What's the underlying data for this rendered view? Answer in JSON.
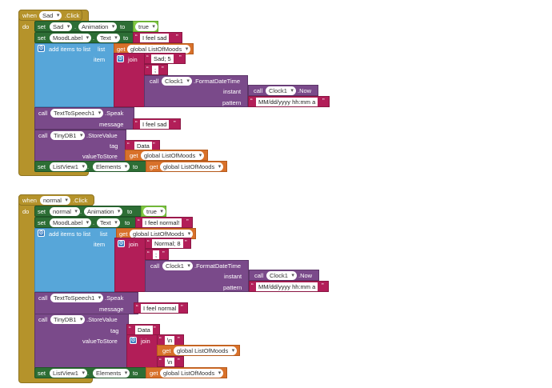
{
  "blocks": [
    {
      "event": {
        "when": "when",
        "component": "Sad",
        "event_name": ".Click",
        "do": "do"
      },
      "set_animation": {
        "set": "set",
        "component": "Sad",
        "property": "Animation",
        "to": "to",
        "value": "true"
      },
      "set_label": {
        "set": "set",
        "component": "MoodLabel",
        "property": "Text",
        "to": "to",
        "value": "I feel sad"
      },
      "add_items": {
        "label": "add items to list",
        "list": "list",
        "item": "item",
        "get": "get",
        "var": "global ListOfMoods"
      },
      "join": {
        "label": "join",
        "s1": "Sad; 5",
        "s2": ";"
      },
      "format": {
        "call": "call",
        "component": "Clock1",
        "method": ".FormatDateTime",
        "instant": "instant",
        "pattern_label": "pattern",
        "pattern": "MM/dd/yyyy hh:mm a"
      },
      "now": {
        "call": "call",
        "component": "Clock1",
        "method": ".Now"
      },
      "speak": {
        "call": "call",
        "component": "TextToSpeech1",
        "method": ".Speak",
        "message_label": "message",
        "message": "I feel sad"
      },
      "store": {
        "call": "call",
        "component": "TinyDB1",
        "method": ".StoreValue",
        "tag_label": "tag",
        "tag": "Data",
        "value_label": "valueToStore",
        "get": "get",
        "var": "global ListOfMoods"
      },
      "set_list": {
        "set": "set",
        "component": "ListView1",
        "property": "Elements",
        "to": "to",
        "get": "get",
        "var": "global ListOfMoods"
      }
    },
    {
      "event": {
        "when": "when",
        "component": "normal",
        "event_name": ".Click",
        "do": "do"
      },
      "set_animation": {
        "set": "set",
        "component": "normal",
        "property": "Animation",
        "to": "to",
        "value": "true"
      },
      "set_label": {
        "set": "set",
        "component": "MoodLabel",
        "property": "Text",
        "to": "to",
        "value": "I feel normal!"
      },
      "add_items": {
        "label": "add items to list",
        "list": "list",
        "item": "item",
        "get": "get",
        "var": "global ListOfMoods"
      },
      "join": {
        "label": "join",
        "s1": "Normal; 8",
        "s2": ";"
      },
      "format": {
        "call": "call",
        "component": "Clock1",
        "method": ".FormatDateTime",
        "instant": "instant",
        "pattern_label": "pattern",
        "pattern": "MM/dd/yyyy hh:mm a"
      },
      "now": {
        "call": "call",
        "component": "Clock1",
        "method": ".Now"
      },
      "speak": {
        "call": "call",
        "component": "TextToSpeech1",
        "method": ".Speak",
        "message_label": "message",
        "message": "I feel normal"
      },
      "store": {
        "call": "call",
        "component": "TinyDB1",
        "method": ".StoreValue",
        "tag_label": "tag",
        "tag": "Data",
        "value_label": "valueToStore"
      },
      "store_join": {
        "label": "join",
        "s1": "\\n",
        "get": "get",
        "var": "global ListOfMoods",
        "s2": "\\n"
      },
      "set_list": {
        "set": "set",
        "component": "ListView1",
        "property": "Elements",
        "to": "to",
        "get": "get",
        "var": "global ListOfMoods"
      }
    }
  ]
}
